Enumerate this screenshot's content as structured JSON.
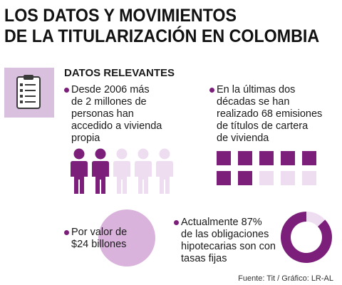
{
  "title": {
    "line1": "LOS DATOS Y  MOVIMIENTOS",
    "line2": "DE LA TITULARIZACIÓN EN COLOMBIA"
  },
  "icons": {
    "clipboard": "clipboard-icon",
    "person": "person-icon"
  },
  "colors": {
    "accent": "#7b1f7a",
    "light": "#eedcf0",
    "panel": "#d9c0de",
    "circle": "#d9b3dc"
  },
  "section": {
    "heading": "DATOS RELEVANTES"
  },
  "facts": {
    "people": {
      "lines": [
        "Desde 2006 más",
        "de 2 millones de",
        "personas han",
        "accedido a vivienda",
        "propia"
      ],
      "highlighted": 2,
      "total": 5
    },
    "emissions": {
      "lines": [
        "En la últimas dos",
        "décadas se han",
        "realizado 68 emisiones",
        "de títulos de cartera",
        "de vivienda"
      ],
      "grid_filled_top": 5,
      "grid_filled_bottom": 2,
      "grid_total_per_row": 5
    },
    "value": {
      "lines": [
        "Por valor de",
        "$24 billones"
      ]
    },
    "fixed_rate": {
      "lines": [
        "Actualmente 87%",
        "de las obligaciones",
        "hipotecarias son con",
        "tasas fijas"
      ],
      "percent": 87
    }
  },
  "source": "Fuente: Tit / Gráfico: LR-AL"
}
